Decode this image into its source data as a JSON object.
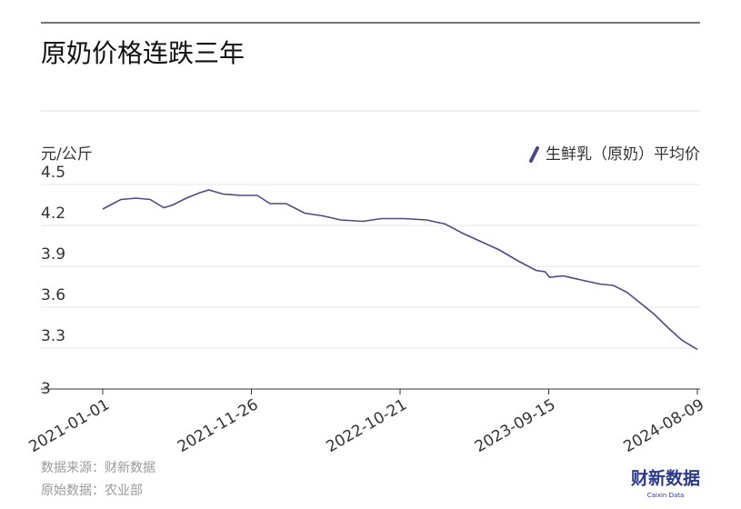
{
  "chart_data": {
    "type": "line",
    "title": "原奶价格连跌三年",
    "y_label": "元/公斤",
    "x": [
      "2021-01-01",
      "2021-02-10",
      "2021-03-16",
      "2021-04-16",
      "2021-05-16",
      "2021-06-05",
      "2021-07-05",
      "2021-08-04",
      "2021-08-24",
      "2021-09-24",
      "2021-11-03",
      "2021-12-09",
      "2022-01-06",
      "2022-02-11",
      "2022-03-24",
      "2022-05-03",
      "2022-06-12",
      "2022-07-31",
      "2022-09-10",
      "2022-10-30",
      "2022-12-19",
      "2023-01-29",
      "2023-03-10",
      "2023-04-19",
      "2023-05-29",
      "2023-07-09",
      "2023-08-18",
      "2023-09-07",
      "2023-09-17",
      "2023-10-17",
      "2023-11-26",
      "2024-01-06",
      "2024-02-05",
      "2024-03-06",
      "2024-04-05",
      "2024-05-05",
      "2024-06-05",
      "2024-07-05",
      "2024-08-09"
    ],
    "series": [
      {
        "name": "生鲜乳（原奶）平均价",
        "color": "#4b4a84",
        "values": [
          4.32,
          4.39,
          4.4,
          4.39,
          4.33,
          4.35,
          4.4,
          4.44,
          4.46,
          4.43,
          4.42,
          4.42,
          4.36,
          4.36,
          4.29,
          4.27,
          4.24,
          4.23,
          4.25,
          4.25,
          4.24,
          4.21,
          4.14,
          4.08,
          4.02,
          3.94,
          3.87,
          3.86,
          3.82,
          3.83,
          3.8,
          3.77,
          3.76,
          3.71,
          3.63,
          3.55,
          3.45,
          3.36,
          3.29
        ]
      }
    ],
    "xlim": [
      "2021-01-01",
      "2024-08-09"
    ],
    "xticks": [
      "2021-01-01",
      "2021-11-26",
      "2022-10-21",
      "2023-09-15",
      "2024-08-09"
    ],
    "ylim": [
      3,
      4.5
    ],
    "yticks": [
      3,
      3.3,
      3.6,
      3.9,
      4.2,
      4.5
    ],
    "grid": true,
    "legend": "top-right",
    "source": "数据来源：财新数据",
    "original_source": "原始数据：农业部",
    "logo": "财新数据",
    "logo_sub": "Caixin Data"
  }
}
